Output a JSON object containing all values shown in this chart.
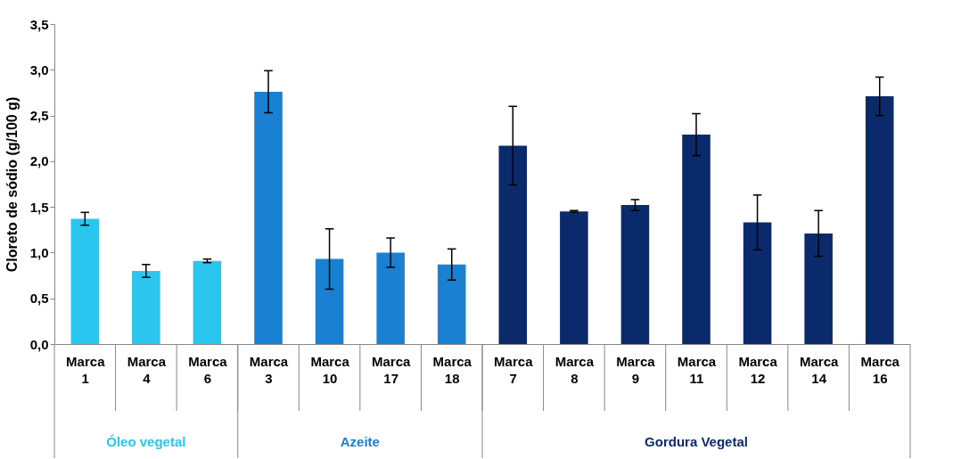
{
  "chart_data": {
    "type": "bar",
    "ylabel": "Cloreto de sódio (g/100 g)",
    "categories": [
      "Marca 1",
      "Marca 4",
      "Marca 6",
      "Marca 3",
      "Marca 10",
      "Marca 17",
      "Marca 18",
      "Marca 7",
      "Marca 8",
      "Marca 9",
      "Marca 11",
      "Marca 12",
      "Marca 14",
      "Marca 16"
    ],
    "series": [
      {
        "name": "Óleo vegetal",
        "color": "#2bc6ef",
        "values": [
          1.37,
          0.8,
          0.91,
          null,
          null,
          null,
          null,
          null,
          null,
          null,
          null,
          null,
          null,
          null
        ],
        "errors": [
          0.07,
          0.07,
          0.02,
          null,
          null,
          null,
          null,
          null,
          null,
          null,
          null,
          null,
          null,
          null
        ]
      },
      {
        "name": "Azeite",
        "color": "#1a80d2",
        "values": [
          null,
          null,
          null,
          2.76,
          0.93,
          1.0,
          0.87,
          null,
          null,
          null,
          null,
          null,
          null,
          null
        ],
        "errors": [
          null,
          null,
          null,
          0.23,
          0.33,
          0.16,
          0.17,
          null,
          null,
          null,
          null,
          null,
          null,
          null
        ]
      },
      {
        "name": "Gordura Vegetal",
        "color": "#0b2a6c",
        "values": [
          null,
          null,
          null,
          null,
          null,
          null,
          null,
          2.17,
          1.45,
          1.52,
          2.29,
          1.33,
          1.21,
          2.71
        ],
        "errors": [
          null,
          null,
          null,
          null,
          null,
          null,
          null,
          0.43,
          0.01,
          0.06,
          0.23,
          0.3,
          0.25,
          0.21
        ]
      }
    ],
    "ylim": [
      0,
      3.5
    ],
    "yticks": [
      {
        "value": 0,
        "label": "0,0"
      },
      {
        "value": 0.5,
        "label": "0,5"
      },
      {
        "value": 1,
        "label": "1,0"
      },
      {
        "value": 1.5,
        "label": "1,5"
      },
      {
        "value": 2,
        "label": "2,0"
      },
      {
        "value": 2.5,
        "label": "2,5"
      },
      {
        "value": 3,
        "label": "3,0"
      },
      {
        "value": 3.5,
        "label": "3,5"
      }
    ],
    "grid": false,
    "legend": false
  }
}
